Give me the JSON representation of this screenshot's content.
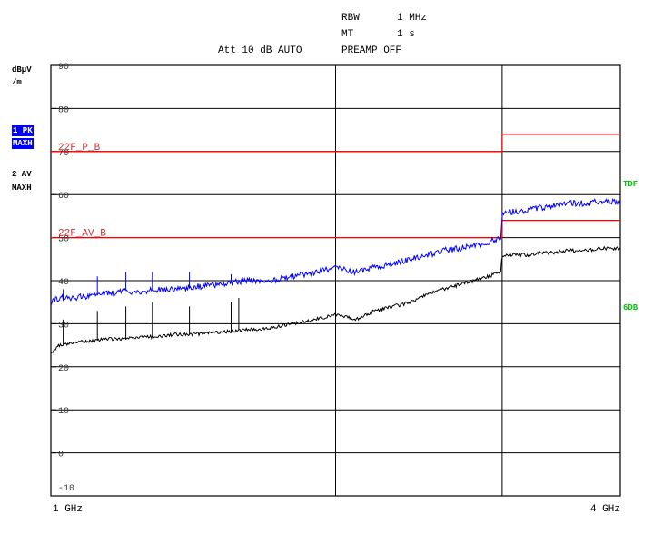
{
  "header": {
    "rbw_label": "RBW",
    "rbw_value": "1 MHz",
    "mt_label": "MT",
    "mt_value": "1 s",
    "att_text": "Att 10 dB AUTO",
    "preamp_text": "PREAMP OFF"
  },
  "side_panel": {
    "unit_line1": "dBµV",
    "unit_line2": "/m",
    "trace1_line1": "1 PK",
    "trace1_line2": "MAXH",
    "trace2_line1": "2 AV",
    "trace2_line2": "MAXH"
  },
  "right_labels": {
    "tdf": "TDF",
    "sixdb": "6DB"
  },
  "colors": {
    "peak_trace": "#0000ff",
    "average_trace": "#000000",
    "limit_line": "#ff0000",
    "limit_label": "#cc3333",
    "right_label": "#00cc00"
  },
  "chart_data": {
    "type": "line",
    "title": "",
    "xlabel": "",
    "ylabel": "dBµV/m",
    "x_start_label": "1 GHz",
    "x_end_label": "4 GHz",
    "xlim_ghz": [
      1,
      4
    ],
    "xscale": "log",
    "ylim": [
      -10,
      90
    ],
    "y_ticks": [
      90,
      80,
      70,
      60,
      50,
      40,
      30,
      20,
      10,
      0,
      -10
    ],
    "grid": true,
    "limit_lines": [
      {
        "name": "22F_P_B",
        "segments": [
          {
            "x": [
              1.0,
              3.0
            ],
            "y": 70
          },
          {
            "x": [
              3.0,
              4.0
            ],
            "y": 74
          }
        ]
      },
      {
        "name": "22F_AV_B",
        "segments": [
          {
            "x": [
              1.0,
              3.0
            ],
            "y": 50
          },
          {
            "x": [
              3.0,
              4.0
            ],
            "y": 54
          }
        ]
      }
    ],
    "series": [
      {
        "name": "1 PK",
        "x": [
          1.0,
          1.02,
          1.05,
          1.1,
          1.15,
          1.2,
          1.25,
          1.3,
          1.35,
          1.4,
          1.5,
          1.6,
          1.7,
          1.8,
          1.9,
          2.0,
          2.1,
          2.2,
          2.3,
          2.4,
          2.5,
          2.6,
          2.7,
          2.8,
          2.9,
          2.99,
          3.0,
          3.01,
          3.1,
          3.2,
          3.3,
          3.4,
          3.5,
          3.6,
          3.7,
          3.8,
          3.9,
          4.0
        ],
        "y": [
          35,
          36,
          36,
          36.5,
          37,
          37.5,
          37.5,
          38,
          38,
          38.5,
          39,
          40,
          40,
          41,
          42,
          43,
          42,
          43,
          44,
          45,
          46,
          47,
          47.5,
          48,
          49,
          50,
          55,
          56,
          56,
          56.5,
          57,
          57.5,
          58,
          58,
          58,
          58.5,
          58.5,
          58
        ]
      },
      {
        "name": "2 AV",
        "x": [
          1.0,
          1.02,
          1.05,
          1.1,
          1.15,
          1.2,
          1.25,
          1.3,
          1.35,
          1.4,
          1.5,
          1.6,
          1.7,
          1.8,
          1.9,
          2.0,
          2.1,
          2.2,
          2.3,
          2.4,
          2.5,
          2.6,
          2.7,
          2.8,
          2.9,
          2.99,
          3.0,
          3.01,
          3.1,
          3.2,
          3.3,
          3.4,
          3.5,
          3.6,
          3.7,
          3.8,
          3.9,
          4.0
        ],
        "y": [
          23,
          25,
          25.5,
          26,
          26.5,
          26.5,
          27,
          27,
          27.5,
          27.5,
          28,
          28.5,
          29,
          30,
          31,
          32,
          31,
          33,
          34,
          35,
          37,
          38,
          39,
          40,
          41,
          42,
          46,
          46,
          46,
          46,
          46.5,
          46.5,
          47,
          47,
          47,
          47.5,
          47.5,
          47.5
        ]
      }
    ],
    "spikes_peak": [
      {
        "x": 1.03,
        "y": 38
      },
      {
        "x": 1.12,
        "y": 41
      },
      {
        "x": 1.2,
        "y": 42
      },
      {
        "x": 1.28,
        "y": 42
      },
      {
        "x": 1.4,
        "y": 42
      },
      {
        "x": 1.55,
        "y": 41.5
      }
    ],
    "spikes_avg": [
      {
        "x": 1.03,
        "y": 31
      },
      {
        "x": 1.12,
        "y": 33
      },
      {
        "x": 1.2,
        "y": 34
      },
      {
        "x": 1.28,
        "y": 35
      },
      {
        "x": 1.4,
        "y": 34
      },
      {
        "x": 1.55,
        "y": 35
      },
      {
        "x": 1.58,
        "y": 36
      }
    ]
  }
}
